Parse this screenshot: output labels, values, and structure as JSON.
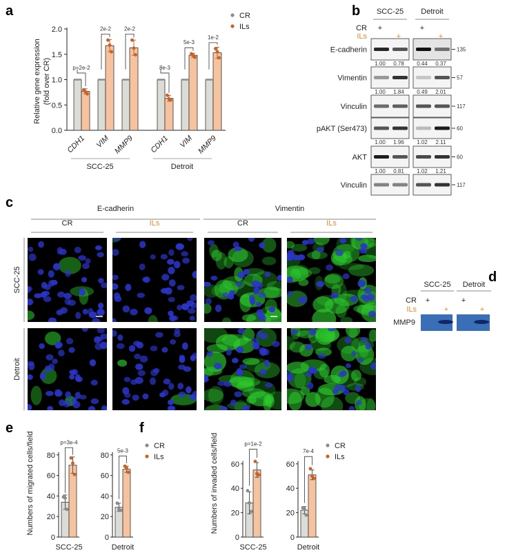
{
  "panel_labels": {
    "a": "a",
    "b": "b",
    "c": "c",
    "d": "d",
    "e": "e",
    "f": "f"
  },
  "colors": {
    "cr_bar": "#dcdcd6",
    "ils_bar": "#f5c3a0",
    "cr_point": "#8c8c8c",
    "ils_point": "#c8642a",
    "ils_text": "#e8892e",
    "gel": "#3a6fb8",
    "nuclei": "#2b35c8",
    "vimentin": "#2fd030"
  },
  "legend": {
    "cr": "CR",
    "ils": "ILs"
  },
  "chart_data": [
    {
      "id": "a",
      "type": "bar",
      "ylabel": "Relative gene expression",
      "ylabel2": "(fold over CR)",
      "ylim": [
        0,
        2.0
      ],
      "yticks": [
        "0.0",
        "0.5",
        "1.0",
        "1.5",
        "2.0"
      ],
      "groups": [
        {
          "name": "SCC-25",
          "categories": [
            "CDH1",
            "VIM",
            "MMP9"
          ],
          "cr": [
            1.0,
            1.0,
            1.0
          ],
          "ils": [
            0.77,
            1.67,
            1.63
          ],
          "ils_points": [
            [
              0.8,
              0.76,
              0.72
            ],
            [
              1.78,
              1.68,
              1.55
            ],
            [
              1.78,
              1.62,
              1.49
            ]
          ],
          "ils_err": [
            0.05,
            0.12,
            0.15
          ],
          "pvalues": [
            "p=2e-2",
            "2e-2",
            "2e-2"
          ]
        },
        {
          "name": "Detroit",
          "categories": [
            "CDH1",
            "VIM",
            "MMP9"
          ],
          "cr": [
            1.0,
            1.0,
            1.0
          ],
          "ils": [
            0.63,
            1.48,
            1.53
          ],
          "ils_points": [
            [
              0.69,
              0.62,
              0.6
            ],
            [
              1.51,
              1.48,
              1.44
            ],
            [
              1.61,
              1.55,
              1.43
            ]
          ],
          "ils_err": [
            0.06,
            0.04,
            0.11
          ],
          "pvalues": [
            "8e-3",
            "5e-3",
            "1e-2"
          ]
        }
      ],
      "legend": [
        "CR",
        "ILs"
      ]
    },
    {
      "id": "e",
      "type": "bar",
      "ylabel": "Numbers of migrated cells/field",
      "ylim": [
        0,
        80
      ],
      "yticks": [
        "0",
        "20",
        "40",
        "60",
        "80"
      ],
      "groups": [
        {
          "name": "SCC-25",
          "cr": 34,
          "ils": 70,
          "cr_points": [
            39,
            38,
            27
          ],
          "ils_points": [
            77,
            72,
            61
          ],
          "cr_err": 7,
          "ils_err": 8,
          "pvalue": "p=3e-4"
        },
        {
          "name": "Detroit",
          "cr": 29,
          "ils": 66,
          "cr_points": [
            33,
            27,
            26
          ],
          "ils_points": [
            69,
            67,
            63
          ],
          "cr_err": 4,
          "ils_err": 3,
          "pvalue": "5e-3"
        }
      ],
      "legend": [
        "CR",
        "ILs"
      ]
    },
    {
      "id": "f",
      "type": "bar",
      "ylabel": "Numbers of invaded cells/field",
      "ylim": [
        0,
        60
      ],
      "yticks": [
        "0",
        "20",
        "40",
        "60"
      ],
      "groups": [
        {
          "name": "SCC-25",
          "cr": 28,
          "ils": 55,
          "cr_points": [
            38,
            28,
            21
          ],
          "ils_points": [
            62,
            52,
            51
          ],
          "cr_err": 9,
          "ils_err": 6,
          "pvalue": "p=1e-2"
        },
        {
          "name": "Detroit",
          "cr": 22,
          "ils": 51,
          "cr_points": [
            24,
            23,
            18
          ],
          "ils_points": [
            56,
            50,
            48
          ],
          "cr_err": 3,
          "ils_err": 4,
          "pvalue": "7e-4"
        }
      ],
      "legend": [
        "CR",
        "ILs"
      ]
    }
  ],
  "western_blot": {
    "cell_lines": [
      "SCC-25",
      "Detroit"
    ],
    "row_cr": "CR",
    "row_ils": "ILs",
    "plus": "+",
    "rows": [
      {
        "label": "E-cadherin",
        "mw": "135",
        "quant": [
          "1.00",
          "0.78",
          "0.44",
          "0.37"
        ]
      },
      {
        "label": "Vimentin",
        "mw": "57",
        "quant": [
          "1.00",
          "1.84",
          "0.49",
          "2.01"
        ]
      },
      {
        "label": "Vinculin",
        "mw": "117",
        "quant": []
      },
      {
        "label": "pAKT (Ser473)",
        "mw": "60",
        "quant": [
          "1.00",
          "1.96",
          "1.02",
          "2.11"
        ]
      },
      {
        "label": "AKT",
        "mw": "60",
        "quant": [
          "1.00",
          "0.81",
          "1.02",
          "1.21"
        ]
      },
      {
        "label": "Vinculin",
        "mw": "117",
        "quant": []
      }
    ]
  },
  "immunofluorescence": {
    "stains": [
      "E-cadherin",
      "Vimentin"
    ],
    "conditions": [
      "CR",
      "ILs"
    ],
    "cell_lines": [
      "SCC-25",
      "Detroit"
    ]
  },
  "zymography": {
    "cell_lines": [
      "SCC-25",
      "Detroit"
    ],
    "row_cr": "CR",
    "row_ils": "ILs",
    "plus": "+",
    "band_label": "MMP9"
  }
}
